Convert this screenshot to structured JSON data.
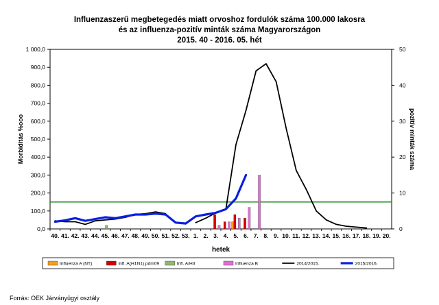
{
  "title_lines": [
    "Influenzaszerű megbetegedés miatt orvoshoz fordulók száma 100.000 lakosra",
    "és az influenza-pozitív minták száma Magyarországon",
    "2015. 40 - 2016. 05. hét"
  ],
  "source": "Forrás: OEK Járványügyi osztály",
  "chart_data": {
    "type": "bar+line",
    "title": "Influenzaszerű megbetegedés miatt orvoshoz fordulók száma 100.000 lakosra és az influenza-pozitív minták száma Magyarországon 2015. 40 - 2016. 05. hét",
    "xlabel": "hetek",
    "ylabel": "Morbiditás %ooo",
    "y2label": "pozitív minták száma",
    "ylim": [
      0,
      1000
    ],
    "y_ticks": [
      "0,0",
      "100,0",
      "200,0",
      "300,0",
      "400,0",
      "500,0",
      "600,0",
      "700,0",
      "800,0",
      "900,0",
      "1 000,0"
    ],
    "y2lim": [
      0,
      50
    ],
    "y2_ticks": [
      "0",
      "10",
      "20",
      "30",
      "40",
      "50"
    ],
    "categories": [
      "40.",
      "41.",
      "42.",
      "43.",
      "44.",
      "45.",
      "46.",
      "47.",
      "48.",
      "49.",
      "50.",
      "51.",
      "52.",
      "53.",
      "1.",
      "2.",
      "3.",
      "4.",
      "5.",
      "6.",
      "7.",
      "8.",
      "9.",
      "10.",
      "11.",
      "12.",
      "13.",
      "14.",
      "15.",
      "16.",
      "17.",
      "18.",
      "19.",
      "20."
    ],
    "threshold_line": {
      "value": 150,
      "color": "#228b22"
    },
    "bar_series": [
      {
        "name": "Influenza A (NT)",
        "color": "#f0a020",
        "axis": "right",
        "values": [
          0,
          0,
          0,
          0,
          0,
          0,
          0,
          0,
          0,
          0,
          0,
          0,
          0,
          0,
          0,
          0,
          0,
          0,
          2,
          0,
          0,
          0,
          0,
          0,
          0,
          0,
          0,
          0,
          0,
          0,
          0,
          0,
          0,
          0
        ]
      },
      {
        "name": "Infl. A(H1N1) pdm09",
        "color": "#d40000",
        "axis": "right",
        "values": [
          0,
          0,
          0,
          0,
          0,
          0,
          0,
          0,
          0,
          0,
          0,
          0,
          0,
          0,
          0,
          0,
          4,
          2,
          4,
          3,
          0,
          0,
          0,
          0,
          0,
          0,
          0,
          0,
          0,
          0,
          0,
          0,
          0,
          0
        ]
      },
      {
        "name": "Infl. A/H3",
        "color": "#90b870",
        "axis": "right",
        "values": [
          0,
          0,
          0,
          0,
          0,
          1,
          0,
          0,
          0,
          0,
          0,
          0,
          0,
          0,
          0,
          0,
          0,
          0,
          0,
          0,
          0,
          0,
          0,
          0,
          0,
          0,
          0,
          0,
          0,
          0,
          0,
          0,
          0,
          0
        ]
      },
      {
        "name": "Influenza B",
        "color": "#e070d0",
        "axis": "right",
        "values": [
          0,
          0,
          0,
          0,
          0,
          0,
          0,
          0,
          0,
          0,
          0,
          0,
          0,
          0,
          0,
          0,
          1,
          2,
          3,
          6,
          15,
          0,
          0,
          0,
          0,
          0,
          0,
          0,
          0,
          0,
          0,
          0,
          0,
          0
        ]
      }
    ],
    "line_series": [
      {
        "name": "2014/2015.",
        "color": "#000000",
        "axis": "left",
        "values": [
          45,
          40,
          40,
          25,
          45,
          50,
          55,
          65,
          80,
          85,
          95,
          85,
          null,
          null,
          35,
          60,
          90,
          110,
          470,
          660,
          880,
          920,
          820,
          560,
          325,
          220,
          100,
          50,
          25,
          15,
          10,
          5,
          null,
          null
        ]
      },
      {
        "name": "2015/2016.",
        "color": "#0a1fe0",
        "axis": "left",
        "values": [
          40,
          48,
          60,
          45,
          55,
          65,
          60,
          70,
          80,
          80,
          85,
          80,
          35,
          30,
          70,
          80,
          90,
          110,
          170,
          300,
          null,
          null,
          null,
          null,
          null,
          null,
          null,
          null,
          null,
          null,
          null,
          null,
          null,
          null
        ]
      }
    ]
  }
}
